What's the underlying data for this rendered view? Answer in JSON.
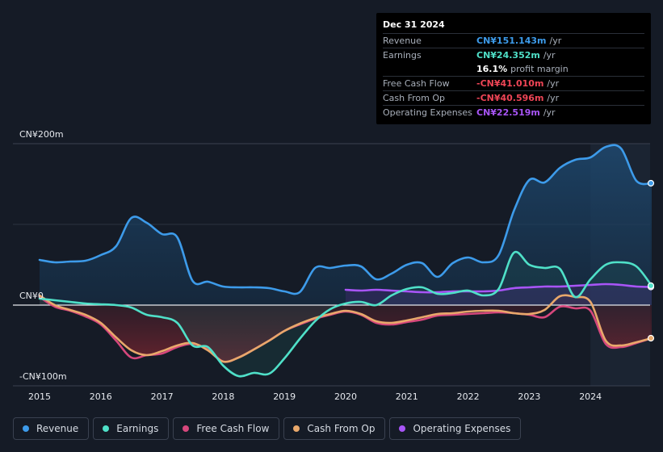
{
  "tooltip": {
    "date": "Dec 31 2024",
    "rows": [
      {
        "label": "Revenue",
        "value": "CN¥151.143m",
        "unit": "/yr",
        "color": "#3d9bea"
      },
      {
        "label": "Earnings",
        "value": "CN¥24.352m",
        "unit": "/yr",
        "color": "#4fe0c8"
      },
      {
        "label": "",
        "value": "16.1%",
        "unit": "profit margin",
        "color": "#ffffff"
      },
      {
        "label": "Free Cash Flow",
        "value": "-CN¥41.010m",
        "unit": "/yr",
        "color": "#ef4556"
      },
      {
        "label": "Cash From Op",
        "value": "-CN¥40.596m",
        "unit": "/yr",
        "color": "#ef4556"
      },
      {
        "label": "Operating Expenses",
        "value": "CN¥22.519m",
        "unit": "/yr",
        "color": "#a855f7"
      }
    ]
  },
  "colors": {
    "revenue": "#3d9bea",
    "earnings": "#4fe0c8",
    "fcf": "#d6477c",
    "cfo": "#e8a86b",
    "opex": "#a855f7",
    "background": "#151b26"
  },
  "chart_data": {
    "type": "line",
    "title": "",
    "ylabel": "",
    "xlabel": "",
    "y_tick_labels": [
      "CN¥200m",
      "CN¥0",
      "-CN¥100m"
    ],
    "ylim": [
      -100,
      200
    ],
    "xlim": [
      2014.75,
      2025.0
    ],
    "x_ticks": [
      "2015",
      "2016",
      "2017",
      "2018",
      "2019",
      "2020",
      "2021",
      "2022",
      "2023",
      "2024"
    ],
    "x_tick_values": [
      2015,
      2016,
      2017,
      2018,
      2019,
      2020,
      2021,
      2022,
      2023,
      2024
    ],
    "highlight_from": 2024.0,
    "series": [
      {
        "name": "Revenue",
        "key": "revenue",
        "points": [
          [
            2015.0,
            56
          ],
          [
            2015.25,
            53
          ],
          [
            2015.5,
            54
          ],
          [
            2015.75,
            55
          ],
          [
            2016.0,
            62
          ],
          [
            2016.25,
            73
          ],
          [
            2016.5,
            108
          ],
          [
            2016.75,
            102
          ],
          [
            2017.0,
            88
          ],
          [
            2017.25,
            84
          ],
          [
            2017.5,
            30
          ],
          [
            2017.75,
            29
          ],
          [
            2018.0,
            23
          ],
          [
            2018.25,
            22
          ],
          [
            2018.5,
            22
          ],
          [
            2018.75,
            21
          ],
          [
            2019.0,
            17
          ],
          [
            2019.25,
            16
          ],
          [
            2019.5,
            46
          ],
          [
            2019.75,
            46
          ],
          [
            2020.0,
            49
          ],
          [
            2020.25,
            48
          ],
          [
            2020.5,
            32
          ],
          [
            2020.75,
            39
          ],
          [
            2021.0,
            50
          ],
          [
            2021.25,
            52
          ],
          [
            2021.5,
            35
          ],
          [
            2021.75,
            52
          ],
          [
            2022.0,
            59
          ],
          [
            2022.25,
            53
          ],
          [
            2022.5,
            62
          ],
          [
            2022.75,
            117
          ],
          [
            2023.0,
            155
          ],
          [
            2023.25,
            152
          ],
          [
            2023.5,
            170
          ],
          [
            2023.75,
            180
          ],
          [
            2024.0,
            183
          ],
          [
            2024.25,
            196
          ],
          [
            2024.5,
            194
          ],
          [
            2024.75,
            154
          ],
          [
            2025.0,
            151
          ]
        ]
      },
      {
        "name": "Earnings",
        "key": "earnings",
        "points": [
          [
            2015.0,
            8
          ],
          [
            2015.25,
            6
          ],
          [
            2015.5,
            4
          ],
          [
            2015.75,
            2
          ],
          [
            2016.0,
            1
          ],
          [
            2016.25,
            0
          ],
          [
            2016.5,
            -3
          ],
          [
            2016.75,
            -12
          ],
          [
            2017.0,
            -15
          ],
          [
            2017.25,
            -22
          ],
          [
            2017.5,
            -50
          ],
          [
            2017.75,
            -52
          ],
          [
            2018.0,
            -75
          ],
          [
            2018.25,
            -88
          ],
          [
            2018.5,
            -84
          ],
          [
            2018.75,
            -85
          ],
          [
            2019.0,
            -66
          ],
          [
            2019.25,
            -42
          ],
          [
            2019.5,
            -20
          ],
          [
            2019.75,
            -5
          ],
          [
            2020.0,
            2
          ],
          [
            2020.25,
            4
          ],
          [
            2020.5,
            0
          ],
          [
            2020.75,
            12
          ],
          [
            2021.0,
            20
          ],
          [
            2021.25,
            22
          ],
          [
            2021.5,
            14
          ],
          [
            2021.75,
            15
          ],
          [
            2022.0,
            18
          ],
          [
            2022.25,
            12
          ],
          [
            2022.5,
            20
          ],
          [
            2022.75,
            65
          ],
          [
            2023.0,
            50
          ],
          [
            2023.25,
            46
          ],
          [
            2023.5,
            45
          ],
          [
            2023.75,
            10
          ],
          [
            2024.0,
            32
          ],
          [
            2024.25,
            50
          ],
          [
            2024.5,
            53
          ],
          [
            2024.75,
            48
          ],
          [
            2025.0,
            24
          ]
        ]
      },
      {
        "name": "Free Cash Flow",
        "key": "fcf",
        "points": [
          [
            2015.0,
            10
          ],
          [
            2015.25,
            -2
          ],
          [
            2015.5,
            -7
          ],
          [
            2015.75,
            -14
          ],
          [
            2016.0,
            -24
          ],
          [
            2016.25,
            -44
          ],
          [
            2016.5,
            -65
          ],
          [
            2016.75,
            -62
          ],
          [
            2017.0,
            -60
          ],
          [
            2017.25,
            -52
          ],
          [
            2017.5,
            -48
          ],
          [
            2017.75,
            -55
          ],
          [
            2018.0,
            -70
          ],
          [
            2018.25,
            -65
          ],
          [
            2018.5,
            -55
          ],
          [
            2018.75,
            -44
          ],
          [
            2019.0,
            -32
          ],
          [
            2019.25,
            -24
          ],
          [
            2019.5,
            -17
          ],
          [
            2019.75,
            -12
          ],
          [
            2020.0,
            -8
          ],
          [
            2020.25,
            -12
          ],
          [
            2020.5,
            -22
          ],
          [
            2020.75,
            -24
          ],
          [
            2021.0,
            -21
          ],
          [
            2021.25,
            -18
          ],
          [
            2021.5,
            -13
          ],
          [
            2021.75,
            -12
          ],
          [
            2022.0,
            -11
          ],
          [
            2022.25,
            -10
          ],
          [
            2022.5,
            -9
          ],
          [
            2022.75,
            -10
          ],
          [
            2023.0,
            -12
          ],
          [
            2023.25,
            -15
          ],
          [
            2023.5,
            -2
          ],
          [
            2023.75,
            -4
          ],
          [
            2024.0,
            -7
          ],
          [
            2024.25,
            -48
          ],
          [
            2024.5,
            -52
          ],
          [
            2024.75,
            -47
          ],
          [
            2025.0,
            -41
          ]
        ]
      },
      {
        "name": "Cash From Op",
        "key": "cfo",
        "points": [
          [
            2015.0,
            12
          ],
          [
            2015.25,
            0
          ],
          [
            2015.5,
            -6
          ],
          [
            2015.75,
            -12
          ],
          [
            2016.0,
            -22
          ],
          [
            2016.25,
            -40
          ],
          [
            2016.5,
            -56
          ],
          [
            2016.75,
            -62
          ],
          [
            2017.0,
            -57
          ],
          [
            2017.25,
            -50
          ],
          [
            2017.5,
            -47
          ],
          [
            2017.75,
            -56
          ],
          [
            2018.0,
            -70
          ],
          [
            2018.25,
            -65
          ],
          [
            2018.5,
            -55
          ],
          [
            2018.75,
            -44
          ],
          [
            2019.0,
            -32
          ],
          [
            2019.25,
            -23
          ],
          [
            2019.5,
            -16
          ],
          [
            2019.75,
            -11
          ],
          [
            2020.0,
            -7
          ],
          [
            2020.25,
            -11
          ],
          [
            2020.5,
            -20
          ],
          [
            2020.75,
            -22
          ],
          [
            2021.0,
            -19
          ],
          [
            2021.25,
            -15
          ],
          [
            2021.5,
            -11
          ],
          [
            2021.75,
            -10
          ],
          [
            2022.0,
            -8
          ],
          [
            2022.25,
            -7
          ],
          [
            2022.5,
            -7
          ],
          [
            2022.75,
            -10
          ],
          [
            2023.0,
            -11
          ],
          [
            2023.25,
            -6
          ],
          [
            2023.5,
            11
          ],
          [
            2023.75,
            10
          ],
          [
            2024.0,
            4
          ],
          [
            2024.25,
            -44
          ],
          [
            2024.5,
            -50
          ],
          [
            2024.75,
            -46
          ],
          [
            2025.0,
            -41
          ]
        ]
      },
      {
        "name": "Operating Expenses",
        "key": "opex",
        "points": [
          [
            2020.0,
            19
          ],
          [
            2020.25,
            18
          ],
          [
            2020.5,
            19
          ],
          [
            2020.75,
            18
          ],
          [
            2021.0,
            17
          ],
          [
            2021.25,
            16
          ],
          [
            2021.5,
            16
          ],
          [
            2021.75,
            17
          ],
          [
            2022.0,
            17
          ],
          [
            2022.25,
            17
          ],
          [
            2022.5,
            18
          ],
          [
            2022.75,
            21
          ],
          [
            2023.0,
            22
          ],
          [
            2023.25,
            23
          ],
          [
            2023.5,
            23
          ],
          [
            2023.75,
            24
          ],
          [
            2024.0,
            25
          ],
          [
            2024.25,
            26
          ],
          [
            2024.5,
            25
          ],
          [
            2024.75,
            23
          ],
          [
            2025.0,
            22.5
          ]
        ]
      }
    ]
  },
  "legend": [
    {
      "label": "Revenue",
      "color": "#3d9bea"
    },
    {
      "label": "Earnings",
      "color": "#4fe0c8"
    },
    {
      "label": "Free Cash Flow",
      "color": "#d6477c"
    },
    {
      "label": "Cash From Op",
      "color": "#e8a86b"
    },
    {
      "label": "Operating Expenses",
      "color": "#a855f7"
    }
  ]
}
